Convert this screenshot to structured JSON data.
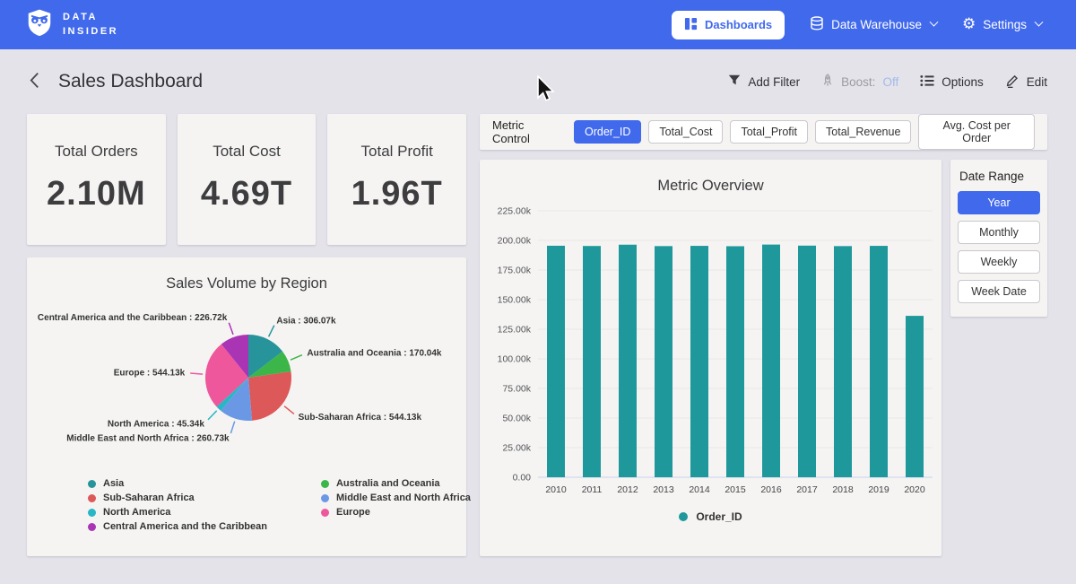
{
  "topbar": {
    "brand": {
      "line1": "DATA",
      "line2": "INSIDER"
    },
    "nav": [
      {
        "label": "Dashboards",
        "icon": "dashboard-icon"
      },
      {
        "label": "Data Warehouse",
        "icon": "database-icon"
      },
      {
        "label": "Settings",
        "icon": "gear-icon"
      }
    ]
  },
  "header": {
    "title": "Sales Dashboard",
    "actions": {
      "add_filter": "Add Filter",
      "boost_label": "Boost:",
      "boost_value": "Off",
      "options": "Options",
      "edit": "Edit"
    }
  },
  "kpis": [
    {
      "label": "Total Orders",
      "value": "2.10M"
    },
    {
      "label": "Total Cost",
      "value": "4.69T"
    },
    {
      "label": "Total Profit",
      "value": "1.96T"
    }
  ],
  "metric_control": {
    "label": "Metric Control",
    "options": [
      "Order_ID",
      "Total_Cost",
      "Total_Profit",
      "Total_Revenue",
      "Avg. Cost per Order"
    ],
    "selected": "Order_ID"
  },
  "date_range": {
    "label": "Date Range",
    "options": [
      "Year",
      "Monthly",
      "Weekly",
      "Week Date"
    ],
    "selected": "Year"
  },
  "colors": {
    "accent_blue": "#4169ec",
    "bar_teal": "#1f989b",
    "page_bg": "#e4e3ea",
    "panel_bg": "#f5f4f2",
    "boost_off": "#a3b9ec"
  },
  "chart_data": [
    {
      "type": "bar",
      "title": "Metric Overview",
      "categories": [
        "2010",
        "2011",
        "2012",
        "2013",
        "2014",
        "2015",
        "2016",
        "2017",
        "2018",
        "2019",
        "2020"
      ],
      "values": [
        195.5,
        195.3,
        196.4,
        195.2,
        195.4,
        195.1,
        196.5,
        195.6,
        195.2,
        195.4,
        136.3
      ],
      "unit": "k",
      "ylim": [
        0,
        225
      ],
      "yticks": [
        {
          "v": 0,
          "label": "0.00"
        },
        {
          "v": 25,
          "label": "25.00k"
        },
        {
          "v": 50,
          "label": "50.00k"
        },
        {
          "v": 75,
          "label": "75.00k"
        },
        {
          "v": 100,
          "label": "100.00k"
        },
        {
          "v": 125,
          "label": "125.00k"
        },
        {
          "v": 150,
          "label": "150.00k"
        },
        {
          "v": 175,
          "label": "175.00k"
        },
        {
          "v": 200,
          "label": "200.00k"
        },
        {
          "v": 225,
          "label": "225.00k"
        }
      ],
      "bar_color": "#1f989b",
      "legend": [
        {
          "name": "Order_ID",
          "color": "#1f989b"
        }
      ],
      "legend_position": "bottom",
      "grid": true
    },
    {
      "type": "pie",
      "title": "Sales Volume by Region",
      "slices": [
        {
          "name": "Asia",
          "value": 306.07,
          "label": "Asia : 306.07k",
          "color": "#27949b"
        },
        {
          "name": "Australia and Oceania",
          "value": 170.04,
          "label": "Australia and Oceania : 170.04k",
          "color": "#3cb549"
        },
        {
          "name": "Sub-Saharan Africa",
          "value": 544.13,
          "label": "Sub-Saharan Africa : 544.13k",
          "color": "#dd5858"
        },
        {
          "name": "Middle East and North Africa",
          "value": 260.73,
          "label": "Middle East and North Africa : 260.73k",
          "color": "#6a98e5"
        },
        {
          "name": "North America",
          "value": 45.34,
          "label": "North America : 45.34k",
          "color": "#29b7c5"
        },
        {
          "name": "Europe",
          "value": 544.13,
          "label": "Europe : 544.13k",
          "color": "#ee579b"
        },
        {
          "name": "Central America and the Caribbean",
          "value": 226.72,
          "label": "Central America and the Caribbean : 226.72k",
          "color": "#a935b5"
        }
      ],
      "legend_columns": [
        [
          0,
          2,
          4,
          6
        ],
        [
          1,
          3,
          5
        ]
      ],
      "legend_position": "bottom"
    }
  ]
}
